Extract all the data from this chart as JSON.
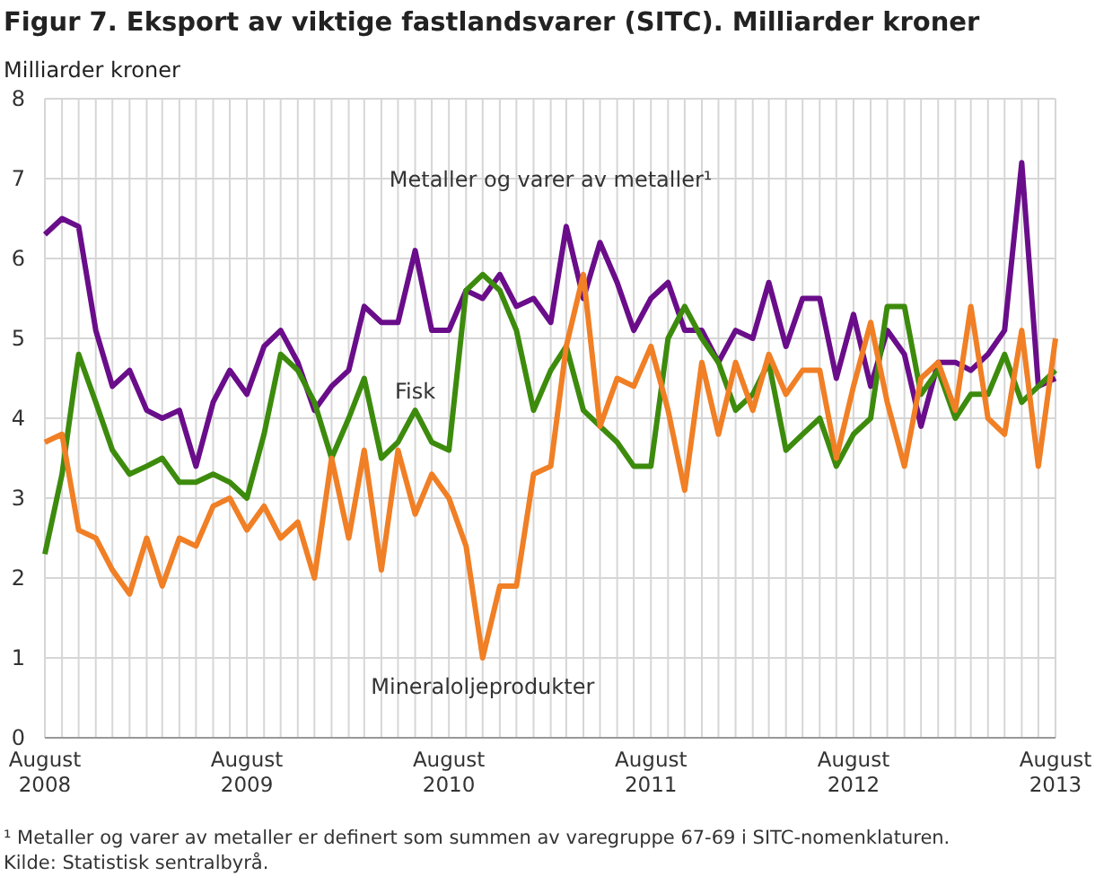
{
  "chart_data": {
    "type": "line",
    "title": "Figur 7. Eksport av viktige fastlandsvarer (SITC).  Milliarder kroner",
    "ylabel": "Milliarder kroner",
    "x": [
      "2008-08",
      "2008-09",
      "2008-10",
      "2008-11",
      "2008-12",
      "2009-01",
      "2009-02",
      "2009-03",
      "2009-04",
      "2009-05",
      "2009-06",
      "2009-07",
      "2009-08",
      "2009-09",
      "2009-10",
      "2009-11",
      "2009-12",
      "2010-01",
      "2010-02",
      "2010-03",
      "2010-04",
      "2010-05",
      "2010-06",
      "2010-07",
      "2010-08",
      "2010-09",
      "2010-10",
      "2010-11",
      "2010-12",
      "2011-01",
      "2011-02",
      "2011-03",
      "2011-04",
      "2011-05",
      "2011-06",
      "2011-07",
      "2011-08",
      "2011-09",
      "2011-10",
      "2011-11",
      "2011-12",
      "2012-01",
      "2012-02",
      "2012-03",
      "2012-04",
      "2012-05",
      "2012-06",
      "2012-07",
      "2012-08",
      "2012-09",
      "2012-10",
      "2012-11",
      "2012-12",
      "2013-01",
      "2013-02",
      "2013-03",
      "2013-04",
      "2013-05",
      "2013-06",
      "2013-07",
      "2013-08"
    ],
    "series": [
      {
        "name": "Metaller og varer av metaller¹",
        "color": "#6a0d8a",
        "values": [
          6.3,
          6.5,
          6.4,
          5.1,
          4.4,
          4.6,
          4.1,
          4.0,
          4.1,
          3.4,
          4.2,
          4.6,
          4.3,
          4.9,
          5.1,
          4.7,
          4.1,
          4.4,
          4.6,
          5.4,
          5.2,
          5.2,
          6.1,
          5.1,
          5.1,
          5.6,
          5.5,
          5.8,
          5.4,
          5.5,
          5.2,
          6.4,
          5.5,
          6.2,
          5.7,
          5.1,
          5.5,
          5.7,
          5.1,
          5.1,
          4.7,
          5.1,
          5.0,
          5.7,
          4.9,
          5.5,
          5.5,
          4.5,
          5.3,
          4.4,
          5.1,
          4.8,
          3.9,
          4.7,
          4.7,
          4.6,
          4.8,
          5.1,
          7.2,
          4.4,
          4.5
        ]
      },
      {
        "name": "Fisk",
        "color": "#3d8b0d",
        "values": [
          2.3,
          3.3,
          4.8,
          4.2,
          3.6,
          3.3,
          3.4,
          3.5,
          3.2,
          3.2,
          3.3,
          3.2,
          3.0,
          3.8,
          4.8,
          4.6,
          4.2,
          3.5,
          4.0,
          4.5,
          3.5,
          3.7,
          4.1,
          3.7,
          3.6,
          5.6,
          5.8,
          5.6,
          5.1,
          4.1,
          4.6,
          4.9,
          4.1,
          3.9,
          3.7,
          3.4,
          3.4,
          5.0,
          5.4,
          5.0,
          4.7,
          4.1,
          4.3,
          4.7,
          3.6,
          3.8,
          4.0,
          3.4,
          3.8,
          4.0,
          5.4,
          5.4,
          4.3,
          4.6,
          4.0,
          4.3,
          4.3,
          4.8,
          4.2,
          4.4,
          4.6
        ]
      },
      {
        "name": "Mineraloljeprodukter",
        "color": "#f07f25",
        "values": [
          3.7,
          3.8,
          2.6,
          2.5,
          2.1,
          1.8,
          2.5,
          1.9,
          2.5,
          2.4,
          2.9,
          3.0,
          2.6,
          2.9,
          2.5,
          2.7,
          2.0,
          3.5,
          2.5,
          3.6,
          2.1,
          3.6,
          2.8,
          3.3,
          3.0,
          2.4,
          1.0,
          1.9,
          1.9,
          3.3,
          3.4,
          4.9,
          5.8,
          3.9,
          4.5,
          4.4,
          4.9,
          4.1,
          3.1,
          4.7,
          3.8,
          4.7,
          4.1,
          4.8,
          4.3,
          4.6,
          4.6,
          3.5,
          4.4,
          5.2,
          4.2,
          3.4,
          4.5,
          4.7,
          4.1,
          5.4,
          4.0,
          3.8,
          5.1,
          3.4,
          5.0
        ]
      }
    ],
    "xlim": [
      "2008-08",
      "2013-08"
    ],
    "xticks": [
      {
        "value": "2008-08",
        "label": "August 2008"
      },
      {
        "value": "2008-09",
        "label": null
      },
      {
        "value": "2008-10",
        "label": null
      },
      {
        "value": "2008-11",
        "label": null
      },
      {
        "value": "2008-12",
        "label": null
      },
      {
        "value": "2009-01",
        "label": null
      },
      {
        "value": "2009-02",
        "label": null
      },
      {
        "value": "2009-03",
        "label": null
      },
      {
        "value": "2009-04",
        "label": null
      },
      {
        "value": "2009-05",
        "label": null
      },
      {
        "value": "2009-06",
        "label": null
      },
      {
        "value": "2009-07",
        "label": null
      },
      {
        "value": "2009-08",
        "label": "August 2009"
      },
      {
        "value": "2009-09",
        "label": null
      },
      {
        "value": "2009-10",
        "label": null
      },
      {
        "value": "2009-11",
        "label": null
      },
      {
        "value": "2009-12",
        "label": null
      },
      {
        "value": "2010-01",
        "label": null
      },
      {
        "value": "2010-02",
        "label": null
      },
      {
        "value": "2010-03",
        "label": null
      },
      {
        "value": "2010-04",
        "label": null
      },
      {
        "value": "2010-05",
        "label": null
      },
      {
        "value": "2010-06",
        "label": null
      },
      {
        "value": "2010-07",
        "label": null
      },
      {
        "value": "2010-08",
        "label": "August 2010"
      },
      {
        "value": "2010-09",
        "label": null
      },
      {
        "value": "2010-10",
        "label": null
      },
      {
        "value": "2010-11",
        "label": null
      },
      {
        "value": "2010-12",
        "label": null
      },
      {
        "value": "2011-01",
        "label": null
      },
      {
        "value": "2011-02",
        "label": null
      },
      {
        "value": "2011-03",
        "label": null
      },
      {
        "value": "2011-04",
        "label": null
      },
      {
        "value": "2011-05",
        "label": null
      },
      {
        "value": "2011-06",
        "label": null
      },
      {
        "value": "2011-07",
        "label": null
      },
      {
        "value": "2011-08",
        "label": "August 2011"
      },
      {
        "value": "2011-09",
        "label": null
      },
      {
        "value": "2011-10",
        "label": null
      },
      {
        "value": "2011-11",
        "label": null
      },
      {
        "value": "2011-12",
        "label": null
      },
      {
        "value": "2012-01",
        "label": null
      },
      {
        "value": "2012-02",
        "label": null
      },
      {
        "value": "2012-03",
        "label": null
      },
      {
        "value": "2012-04",
        "label": null
      },
      {
        "value": "2012-05",
        "label": null
      },
      {
        "value": "2012-06",
        "label": null
      },
      {
        "value": "2012-07",
        "label": null
      },
      {
        "value": "2012-08",
        "label": "August 2012"
      },
      {
        "value": "2012-09",
        "label": null
      },
      {
        "value": "2012-10",
        "label": null
      },
      {
        "value": "2012-11",
        "label": null
      },
      {
        "value": "2012-12",
        "label": null
      },
      {
        "value": "2013-01",
        "label": null
      },
      {
        "value": "2013-02",
        "label": null
      },
      {
        "value": "2013-03",
        "label": null
      },
      {
        "value": "2013-04",
        "label": null
      },
      {
        "value": "2013-05",
        "label": null
      },
      {
        "value": "2013-06",
        "label": null
      },
      {
        "value": "2013-07",
        "label": null
      },
      {
        "value": "2013-08",
        "label": "August 2013"
      }
    ],
    "ylim": [
      0,
      8
    ],
    "yticks": [
      0,
      1,
      2,
      3,
      4,
      5,
      6,
      7,
      8
    ],
    "grid": true,
    "legend": false,
    "marker": "none",
    "line_style": "solid",
    "annotations": [
      "¹ Metaller og varer av metaller er definert som summen av varegruppe 67-69 i SITC-nomenklaturen.",
      "Kilde: Statistisk sentralbyrå."
    ]
  }
}
